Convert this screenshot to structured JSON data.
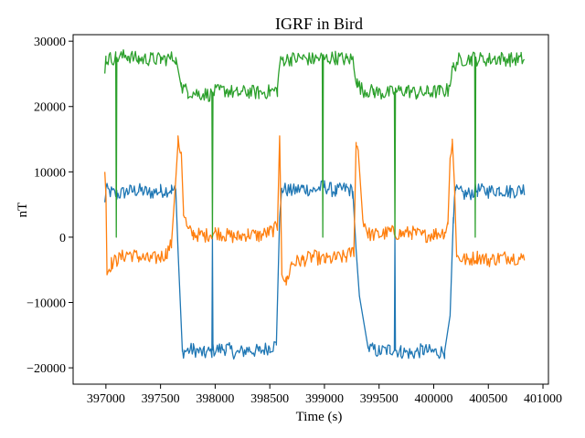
{
  "chart_data": {
    "type": "line",
    "title": "IGRF in Bird",
    "xlabel": "Time (s)",
    "ylabel": "nT",
    "xlim": [
      396700,
      401050
    ],
    "ylim": [
      -22500,
      31000
    ],
    "xticks": [
      397000,
      397500,
      398000,
      398500,
      399000,
      399500,
      400000,
      400500,
      401000
    ],
    "yticks": [
      -20000,
      -10000,
      0,
      10000,
      20000,
      30000
    ],
    "grid": false,
    "legend": "none",
    "series": [
      {
        "color": "#1f77b4",
        "points": [
          [
            396990,
            5000
          ],
          [
            397000,
            7200
          ],
          [
            397100,
            6500
          ],
          [
            397200,
            7000
          ],
          [
            397300,
            7200
          ],
          [
            397400,
            6800
          ],
          [
            397500,
            7100
          ],
          [
            397600,
            7300
          ],
          [
            397640,
            7000
          ],
          [
            397660,
            -2000
          ],
          [
            397700,
            -17500
          ],
          [
            397800,
            -17200
          ],
          [
            397900,
            -17800
          ],
          [
            397970,
            -17500
          ],
          [
            397975,
            0
          ],
          [
            397980,
            -17300
          ],
          [
            398100,
            -17000
          ],
          [
            398200,
            -17800
          ],
          [
            398300,
            -17200
          ],
          [
            398400,
            -17500
          ],
          [
            398500,
            -16800
          ],
          [
            398560,
            -16500
          ],
          [
            398590,
            3000
          ],
          [
            398610,
            7500
          ],
          [
            398700,
            7000
          ],
          [
            398800,
            7500
          ],
          [
            398900,
            7200
          ],
          [
            399000,
            7800
          ],
          [
            399100,
            7000
          ],
          [
            399200,
            7500
          ],
          [
            399260,
            7000
          ],
          [
            399290,
            -2000
          ],
          [
            399320,
            -9000
          ],
          [
            399400,
            -17000
          ],
          [
            399500,
            -17500
          ],
          [
            399600,
            -17200
          ],
          [
            399640,
            -17000
          ],
          [
            399645,
            0
          ],
          [
            399650,
            -17300
          ],
          [
            399700,
            -17500
          ],
          [
            399800,
            -17800
          ],
          [
            399900,
            -17300
          ],
          [
            400000,
            -17600
          ],
          [
            400100,
            -17500
          ],
          [
            400150,
            -12000
          ],
          [
            400180,
            3000
          ],
          [
            400200,
            7000
          ],
          [
            400300,
            6500
          ],
          [
            400400,
            7200
          ],
          [
            400500,
            7000
          ],
          [
            400600,
            7300
          ],
          [
            400700,
            7000
          ],
          [
            400800,
            7200
          ],
          [
            400830,
            7500
          ]
        ]
      },
      {
        "color": "#ff7f0e",
        "points": [
          [
            396990,
            10500
          ],
          [
            397000,
            7000
          ],
          [
            397010,
            -5500
          ],
          [
            397050,
            -4000
          ],
          [
            397100,
            -3500
          ],
          [
            397200,
            -2500
          ],
          [
            397300,
            -3000
          ],
          [
            397400,
            -3500
          ],
          [
            397500,
            -3000
          ],
          [
            397550,
            -2500
          ],
          [
            397600,
            -1000
          ],
          [
            397640,
            9000
          ],
          [
            397660,
            14500
          ],
          [
            397690,
            13000
          ],
          [
            397710,
            4000
          ],
          [
            397750,
            1000
          ],
          [
            397800,
            500
          ],
          [
            397900,
            200
          ],
          [
            398000,
            800
          ],
          [
            398100,
            300
          ],
          [
            398200,
            0
          ],
          [
            398300,
            500
          ],
          [
            398400,
            200
          ],
          [
            398500,
            800
          ],
          [
            398570,
            1500
          ],
          [
            398590,
            15500
          ],
          [
            398610,
            -5000
          ],
          [
            398650,
            -7000
          ],
          [
            398700,
            -4000
          ],
          [
            398800,
            -3500
          ],
          [
            398900,
            -3000
          ],
          [
            399000,
            -3500
          ],
          [
            399100,
            -3200
          ],
          [
            399200,
            -3000
          ],
          [
            399270,
            -2000
          ],
          [
            399290,
            14500
          ],
          [
            399310,
            13000
          ],
          [
            399350,
            3000
          ],
          [
            399400,
            500
          ],
          [
            399500,
            300
          ],
          [
            399600,
            800
          ],
          [
            399700,
            500
          ],
          [
            399800,
            700
          ],
          [
            399900,
            200
          ],
          [
            400000,
            500
          ],
          [
            400100,
            800
          ],
          [
            400130,
            2000
          ],
          [
            400150,
            12000
          ],
          [
            400170,
            15000
          ],
          [
            400190,
            8000
          ],
          [
            400210,
            -3000
          ],
          [
            400300,
            -3500
          ],
          [
            400400,
            -3000
          ],
          [
            400500,
            -3500
          ],
          [
            400600,
            -3200
          ],
          [
            400700,
            -3000
          ],
          [
            400800,
            -3300
          ],
          [
            400830,
            -3000
          ]
        ]
      },
      {
        "color": "#2ca02c",
        "points": [
          [
            396990,
            26000
          ],
          [
            397000,
            27200
          ],
          [
            397090,
            27500
          ],
          [
            397095,
            0
          ],
          [
            397100,
            27500
          ],
          [
            397200,
            27800
          ],
          [
            397300,
            27200
          ],
          [
            397400,
            27300
          ],
          [
            397500,
            27200
          ],
          [
            397640,
            27500
          ],
          [
            397690,
            23000
          ],
          [
            397750,
            22300
          ],
          [
            397850,
            22000
          ],
          [
            397970,
            21800
          ],
          [
            397975,
            0
          ],
          [
            397980,
            22200
          ],
          [
            398100,
            22500
          ],
          [
            398200,
            22000
          ],
          [
            398300,
            22300
          ],
          [
            398400,
            22100
          ],
          [
            398500,
            22300
          ],
          [
            398570,
            22500
          ],
          [
            398590,
            26500
          ],
          [
            398620,
            27200
          ],
          [
            398700,
            27300
          ],
          [
            398800,
            27400
          ],
          [
            398900,
            27200
          ],
          [
            398980,
            27500
          ],
          [
            398985,
            0
          ],
          [
            398990,
            27300
          ],
          [
            399100,
            27500
          ],
          [
            399200,
            27200
          ],
          [
            399260,
            27300
          ],
          [
            399300,
            23500
          ],
          [
            399350,
            22500
          ],
          [
            399450,
            22300
          ],
          [
            399550,
            22000
          ],
          [
            399640,
            22200
          ],
          [
            399645,
            0
          ],
          [
            399650,
            22300
          ],
          [
            399750,
            22500
          ],
          [
            399850,
            22000
          ],
          [
            399950,
            22200
          ],
          [
            400050,
            22300
          ],
          [
            400130,
            22500
          ],
          [
            400180,
            26000
          ],
          [
            400230,
            27200
          ],
          [
            400350,
            27300
          ],
          [
            400375,
            27500
          ],
          [
            400380,
            0
          ],
          [
            400385,
            27300
          ],
          [
            400500,
            27200
          ],
          [
            400600,
            27400
          ],
          [
            400700,
            27200
          ],
          [
            400800,
            27300
          ],
          [
            400830,
            27200
          ]
        ]
      }
    ]
  }
}
